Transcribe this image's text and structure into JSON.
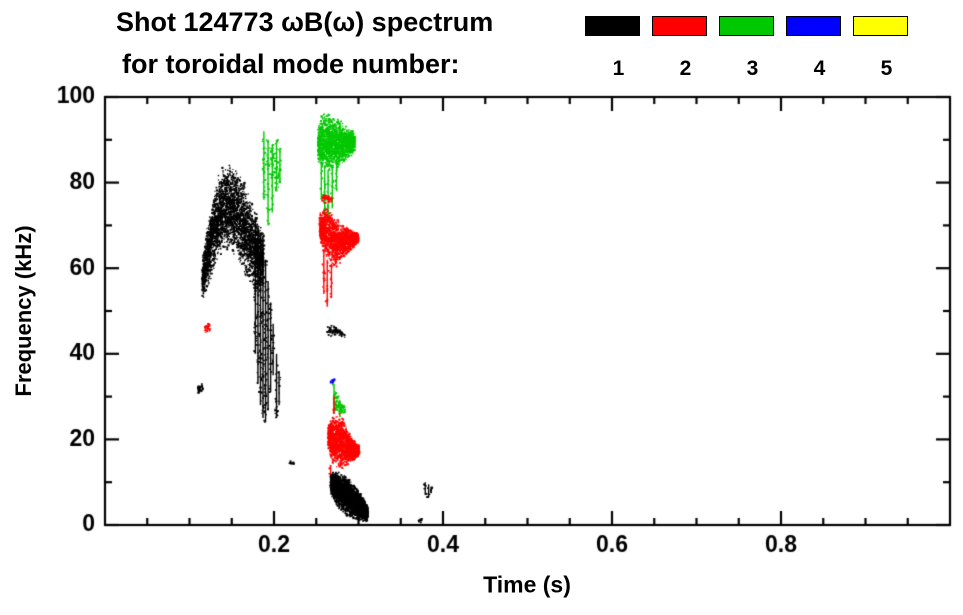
{
  "chart_data": {
    "type": "scatter",
    "title": "Shot 124773 ωB(ω) spectrum",
    "subtitle": "for toroidal mode number:",
    "xlabel": "Time (s)",
    "ylabel": "Frequency (kHz)",
    "xlim": [
      0.0,
      1.0
    ],
    "ylim": [
      0,
      100
    ],
    "xticks": [
      0.2,
      0.4,
      0.6,
      0.8
    ],
    "xtick_labels": [
      "0.2",
      "0.4",
      "0.6",
      "0.8"
    ],
    "yticks": [
      0,
      20,
      40,
      60,
      80,
      100
    ],
    "x_minor_step": 0.05,
    "y_minor_step": 10,
    "grid": false,
    "legend_position": "top-right",
    "legend": [
      {
        "label": "1",
        "color": "#000000"
      },
      {
        "label": "2",
        "color": "#ff0000"
      },
      {
        "label": "3",
        "color": "#00c800"
      },
      {
        "label": "4",
        "color": "#0000ff"
      },
      {
        "label": "5",
        "color": "#ffff00"
      }
    ],
    "series": [
      {
        "name": "toroidal mode n=1",
        "color": "#000000",
        "clusters": [
          {
            "type": "dots",
            "n": 3000,
            "env": [
              [
                0.115,
                52,
                62
              ],
              [
                0.122,
                55,
                72
              ],
              [
                0.13,
                60,
                80
              ],
              [
                0.138,
                63,
                84
              ],
              [
                0.148,
                64,
                85
              ],
              [
                0.158,
                62,
                83
              ],
              [
                0.166,
                58,
                80
              ],
              [
                0.174,
                55,
                76
              ],
              [
                0.182,
                53,
                72
              ],
              [
                0.188,
                55,
                68
              ]
            ]
          },
          {
            "type": "streaks",
            "lines": [
              [
                0.178,
                40,
                72
              ],
              [
                0.181,
                33,
                70
              ],
              [
                0.184,
                28,
                68
              ],
              [
                0.187,
                25,
                66
              ],
              [
                0.19,
                24,
                62
              ],
              [
                0.193,
                27,
                57
              ],
              [
                0.196,
                31,
                52
              ],
              [
                0.199,
                35,
                47
              ],
              [
                0.203,
                25,
                40
              ],
              [
                0.206,
                28,
                36
              ]
            ]
          },
          {
            "type": "dots",
            "n": 35,
            "env": [
              [
                0.11,
                30.5,
                33.5
              ],
              [
                0.116,
                31,
                33
              ]
            ]
          },
          {
            "type": "dots",
            "n": 14,
            "env": [
              [
                0.218,
                14,
                15
              ],
              [
                0.224,
                14,
                15
              ]
            ]
          },
          {
            "type": "dots",
            "n": 90,
            "env": [
              [
                0.262,
                44.5,
                47
              ],
              [
                0.268,
                44,
                47
              ],
              [
                0.275,
                44.5,
                46
              ],
              [
                0.284,
                43.5,
                45
              ]
            ]
          },
          {
            "type": "dots",
            "n": 2600,
            "env": [
              [
                0.267,
                7,
                12
              ],
              [
                0.272,
                5,
                13
              ],
              [
                0.278,
                3.5,
                12.5
              ],
              [
                0.284,
                2.5,
                11.5
              ],
              [
                0.29,
                1.5,
                10.5
              ],
              [
                0.297,
                1,
                9
              ],
              [
                0.304,
                0.8,
                7
              ],
              [
                0.311,
                0.8,
                4.5
              ]
            ]
          },
          {
            "type": "dots",
            "n": 12,
            "env": [
              [
                0.37,
                0.5,
                1.8
              ],
              [
                0.375,
                0.5,
                1.5
              ]
            ]
          },
          {
            "type": "streaks",
            "lines": [
              [
                0.379,
                7,
                10
              ],
              [
                0.383,
                6.5,
                9.5
              ],
              [
                0.386,
                7.5,
                9
              ]
            ]
          }
        ]
      },
      {
        "name": "toroidal mode n=2",
        "color": "#ff0000",
        "clusters": [
          {
            "type": "dots",
            "n": 25,
            "env": [
              [
                0.118,
                44.5,
                47
              ],
              [
                0.124,
                45,
                47.5
              ]
            ]
          },
          {
            "type": "dots",
            "n": 1700,
            "env": [
              [
                0.254,
                66,
                73
              ],
              [
                0.26,
                63,
                75
              ],
              [
                0.266,
                61,
                74
              ],
              [
                0.272,
                60,
                72
              ],
              [
                0.279,
                61,
                71
              ],
              [
                0.286,
                63,
                70
              ],
              [
                0.293,
                64.5,
                69
              ],
              [
                0.3,
                66,
                68
              ]
            ]
          },
          {
            "type": "streaks",
            "lines": [
              [
                0.259,
                54,
                64
              ],
              [
                0.263,
                51,
                62
              ],
              [
                0.268,
                53,
                61
              ]
            ]
          },
          {
            "type": "dots",
            "n": 40,
            "env": [
              [
                0.257,
                75,
                78
              ],
              [
                0.268,
                75,
                77
              ]
            ]
          },
          {
            "type": "dots",
            "n": 1600,
            "env": [
              [
                0.264,
                18,
                23
              ],
              [
                0.27,
                14,
                26
              ],
              [
                0.276,
                13,
                27
              ],
              [
                0.282,
                13,
                25
              ],
              [
                0.288,
                14,
                22
              ],
              [
                0.294,
                15,
                20
              ],
              [
                0.301,
                16,
                18.5
              ]
            ]
          },
          {
            "type": "streaks",
            "lines": [
              [
                0.267,
                9,
                14
              ],
              [
                0.271,
                26,
                30
              ]
            ]
          }
        ]
      },
      {
        "name": "toroidal mode n=3",
        "color": "#00c800",
        "clusters": [
          {
            "type": "streaks",
            "lines": [
              [
                0.188,
                76,
                92
              ],
              [
                0.193,
                70,
                90
              ],
              [
                0.198,
                73,
                89
              ],
              [
                0.203,
                78,
                90
              ],
              [
                0.207,
                80,
                88
              ]
            ]
          },
          {
            "type": "dots",
            "n": 70,
            "env": [
              [
                0.187,
                76,
                92
              ],
              [
                0.208,
                78,
                89
              ]
            ]
          },
          {
            "type": "dots",
            "n": 1500,
            "env": [
              [
                0.252,
                85,
                93
              ],
              [
                0.257,
                83,
                96
              ],
              [
                0.263,
                82,
                97
              ],
              [
                0.269,
                82.5,
                96
              ],
              [
                0.276,
                83,
                95
              ],
              [
                0.283,
                84,
                94
              ],
              [
                0.29,
                85.5,
                93
              ],
              [
                0.296,
                87,
                92
              ]
            ]
          },
          {
            "type": "streaks",
            "lines": [
              [
                0.256,
                76,
                85
              ],
              [
                0.26,
                66,
                84
              ],
              [
                0.264,
                71,
                83
              ],
              [
                0.269,
                74,
                84
              ],
              [
                0.274,
                78,
                85
              ]
            ]
          },
          {
            "type": "dots",
            "n": 90,
            "env": [
              [
                0.27,
                27,
                33
              ],
              [
                0.275,
                25,
                31
              ],
              [
                0.28,
                25.5,
                29.5
              ],
              [
                0.284,
                26,
                28
              ]
            ]
          },
          {
            "type": "streaks",
            "lines": [
              [
                0.271,
                26,
                33
              ]
            ]
          }
        ]
      },
      {
        "name": "toroidal mode n=4",
        "color": "#0000ff",
        "clusters": [
          {
            "type": "dots",
            "n": 14,
            "env": [
              [
                0.267,
                32.5,
                34.5
              ],
              [
                0.272,
                33,
                34.5
              ]
            ]
          }
        ]
      },
      {
        "name": "toroidal mode n=5",
        "color": "#ffff00",
        "clusters": []
      }
    ]
  }
}
